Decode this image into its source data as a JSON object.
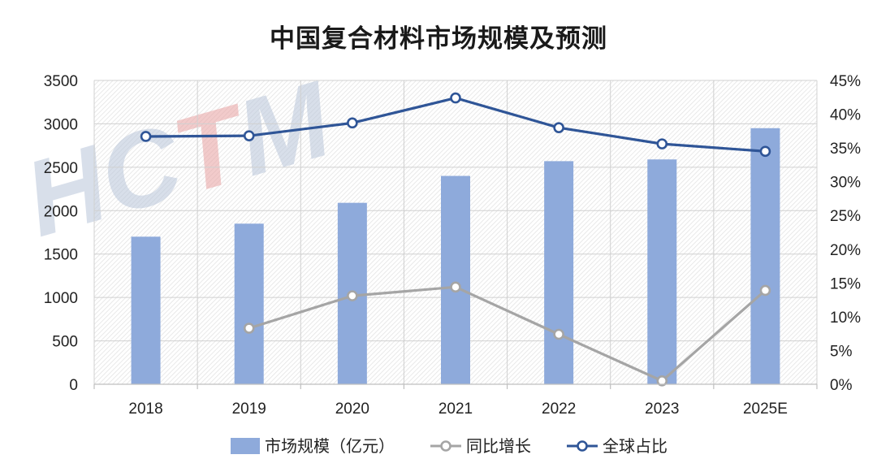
{
  "chart_data": {
    "type": "bar",
    "title": "中国复合材料市场规模及预测",
    "categories": [
      "2018",
      "2019",
      "2020",
      "2021",
      "2022",
      "2023",
      "2025E"
    ],
    "y_left": {
      "ylim": [
        0,
        3500
      ],
      "ticks": [
        0,
        500,
        1000,
        1500,
        2000,
        2500,
        3000,
        3500
      ]
    },
    "y_right": {
      "ylim": [
        0,
        45
      ],
      "ticks": [
        "0%",
        "5%",
        "10%",
        "15%",
        "20%",
        "25%",
        "30%",
        "35%",
        "40%",
        "45%"
      ]
    },
    "series": [
      {
        "name": "市场规模（亿元）",
        "type": "bar",
        "axis": "left",
        "color": "#8eaadb",
        "values": [
          1700,
          1850,
          2090,
          2400,
          2570,
          2590,
          2950
        ]
      },
      {
        "name": "同比增长",
        "type": "line",
        "axis": "right",
        "color": "#a5a5a5",
        "values": [
          null,
          8.3,
          13.1,
          14.4,
          7.4,
          0.5,
          13.9
        ]
      },
      {
        "name": "全球占比",
        "type": "line",
        "axis": "right",
        "color": "#2f5597",
        "values": [
          36.7,
          36.8,
          38.7,
          42.4,
          38.0,
          35.6,
          34.5
        ]
      }
    ],
    "grid": true,
    "legend_position": "bottom",
    "watermark": "HCTM"
  }
}
